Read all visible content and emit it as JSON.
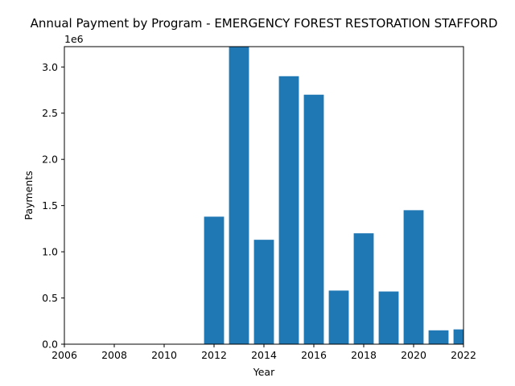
{
  "chart_data": {
    "type": "bar",
    "title": "Annual Payment by Program - EMERGENCY FOREST RESTORATION STAFFORD",
    "xlabel": "Year",
    "ylabel": "Payments",
    "y_offset_text": "1e6",
    "xlim": [
      2006,
      2022
    ],
    "ylim": [
      0,
      3220000
    ],
    "xticks": [
      2006,
      2008,
      2010,
      2012,
      2014,
      2016,
      2018,
      2020,
      2022
    ],
    "yticks": [
      0,
      500000,
      1000000,
      1500000,
      2000000,
      2500000,
      3000000
    ],
    "ytick_labels": [
      "0.0",
      "0.5",
      "1.0",
      "1.5",
      "2.0",
      "2.5",
      "3.0"
    ],
    "bar_width_years": 0.8,
    "bar_color": "#1f77b4",
    "grid": false,
    "x": [
      2012,
      2013,
      2014,
      2015,
      2016,
      2017,
      2018,
      2019,
      2020,
      2021,
      2022
    ],
    "values": [
      1380000,
      3220000,
      1130000,
      2900000,
      2700000,
      580000,
      1200000,
      570000,
      1450000,
      150000,
      160000
    ]
  }
}
